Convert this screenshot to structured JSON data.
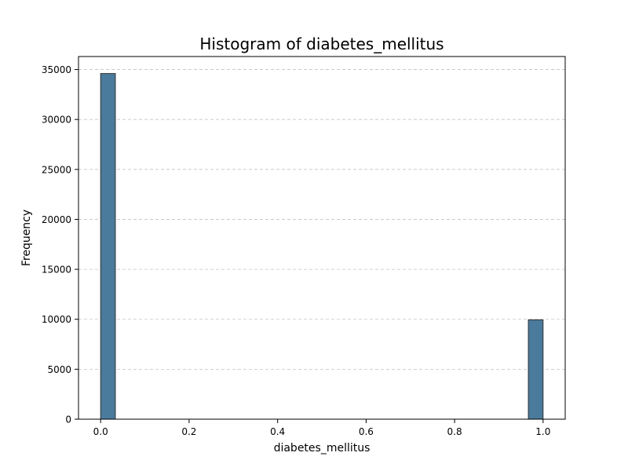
{
  "chart_data": {
    "type": "bar",
    "title": "Histogram of diabetes_mellitus",
    "xlabel": "diabetes_mellitus",
    "ylabel": "Frequency",
    "xlim": [
      -0.05,
      1.05
    ],
    "ylim": [
      0,
      36300
    ],
    "x_ticks": [
      0.0,
      0.2,
      0.4,
      0.6,
      0.8,
      1.0
    ],
    "x_tick_labels": [
      "0.0",
      "0.2",
      "0.4",
      "0.6",
      "0.8",
      "1.0"
    ],
    "y_ticks": [
      0,
      5000,
      10000,
      15000,
      20000,
      25000,
      30000,
      35000
    ],
    "y_tick_labels": [
      "0",
      "5000",
      "10000",
      "15000",
      "20000",
      "25000",
      "30000",
      "35000"
    ],
    "grid": "y-dashed",
    "bar_color": "#4a7a9c",
    "edge_color": "#333333",
    "bins": [
      {
        "x0": 0.0,
        "x1": 0.0333,
        "value": 34600
      },
      {
        "x0": 0.9667,
        "x1": 1.0,
        "value": 9950
      }
    ]
  }
}
